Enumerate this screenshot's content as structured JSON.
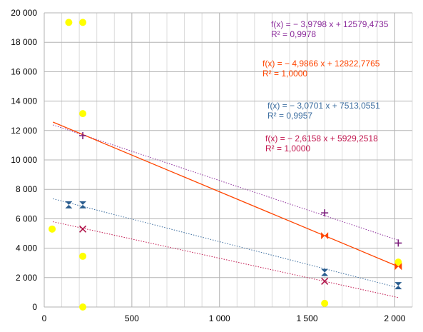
{
  "chart_data": {
    "type": "scatter",
    "title": "",
    "xlabel": "",
    "ylabel": "",
    "xlim": [
      0,
      2100
    ],
    "ylim": [
      0,
      20000
    ],
    "x_ticks": [
      0,
      500,
      1000,
      1500,
      2000
    ],
    "x_tick_labels": [
      "0",
      "500",
      "1 000",
      "1 500",
      "2 000"
    ],
    "y_ticks": [
      0,
      2000,
      4000,
      6000,
      8000,
      10000,
      12000,
      14000,
      16000,
      18000,
      20000
    ],
    "y_tick_labels": [
      "0",
      "2 000",
      "4 000",
      "6 000",
      "8 000",
      "10 000",
      "12 000",
      "14 000",
      "16 000",
      "18 000",
      "20 000"
    ],
    "grid": true,
    "series": [
      {
        "marker": "circle",
        "color": "#ffff00",
        "points": [
          [
            140,
            19350
          ],
          [
            220,
            19350
          ],
          [
            220,
            13150
          ],
          [
            45,
            5300
          ],
          [
            220,
            3450
          ],
          [
            220,
            0
          ],
          [
            1600,
            250
          ],
          [
            2020,
            3050
          ]
        ]
      },
      {
        "marker": "plus",
        "color": "#7b1c7b",
        "trend_color": "#8b2b9b",
        "trend_style": "dotted",
        "points": [
          [
            220,
            11650
          ],
          [
            1600,
            6400
          ],
          [
            2020,
            4350
          ]
        ],
        "trend": {
          "slope": -3.9798,
          "intercept": 12579.4735,
          "x": [
            50,
            2020
          ]
        },
        "equation": "f(x) = − 3,9798 x + 12579,4735",
        "r2": "R² = 0,9978"
      },
      {
        "marker": "bowtie",
        "color": "#ff4500",
        "trend_color": "#ff4500",
        "trend_style": "solid",
        "points": [
          [
            1600,
            4850
          ],
          [
            2020,
            2750
          ]
        ],
        "trend": {
          "slope": -4.9866,
          "intercept": 12822.7765,
          "x": [
            50,
            2020
          ]
        },
        "equation": "f(x) = − 4,9866 x + 12822,7765",
        "r2": "R² = 1,0000"
      },
      {
        "marker": "hourglass",
        "color": "#2a5d8f",
        "trend_color": "#3c6ea0",
        "trend_style": "dotted",
        "points": [
          [
            140,
            6950
          ],
          [
            220,
            6950
          ],
          [
            1600,
            2350
          ],
          [
            2020,
            1450
          ]
        ],
        "trend": {
          "slope": -3.0701,
          "intercept": 7513.0551,
          "x": [
            50,
            2020
          ]
        },
        "equation": "f(x) = − 3,0701 x + 7513,0551",
        "r2": "R² = 0,9957"
      },
      {
        "marker": "x",
        "color": "#b0154a",
        "trend_color": "#c21850",
        "trend_style": "dotted",
        "points": [
          [
            220,
            5300
          ],
          [
            1600,
            1750
          ]
        ],
        "trend": {
          "slope": -2.6158,
          "intercept": 5929.2518,
          "x": [
            50,
            2020
          ]
        },
        "equation": "f(x) = − 2,6158 x + 5929,2518",
        "r2": "R² = 1,0000"
      }
    ]
  }
}
